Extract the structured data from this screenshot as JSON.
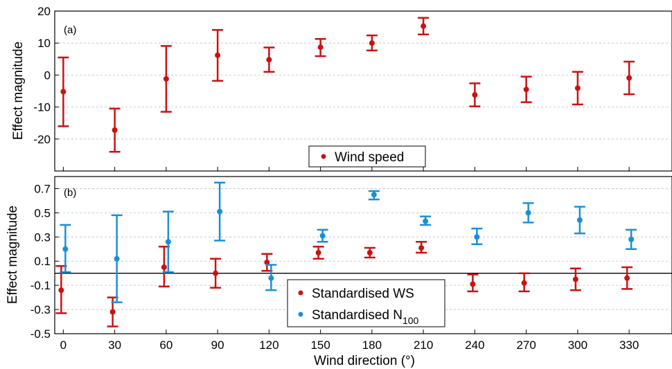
{
  "colors": {
    "wind_speed": "#cc1111",
    "n100": "#1a8fd8",
    "grid": "#bbbbbb"
  },
  "chart_data": [
    {
      "type": "scatter",
      "panel_label": "(a)",
      "xlabel": "",
      "ylabel": "Effect magnitude",
      "xlim": [
        -5,
        355
      ],
      "ylim": [
        -30,
        20
      ],
      "x_ticks": [
        "0",
        "30",
        "60",
        "90",
        "120",
        "150",
        "180",
        "210",
        "240",
        "270",
        "300",
        "330"
      ],
      "y_ticks": [
        -20,
        -10,
        0,
        10,
        20
      ],
      "grid": "horizontal dashed",
      "legend_position": "bottom-center",
      "series": [
        {
          "name": "Wind speed",
          "color": "#cc1111",
          "x": [
            0,
            30,
            60,
            90,
            120,
            150,
            180,
            210,
            240,
            270,
            300,
            330
          ],
          "y": [
            -5.2,
            -17.2,
            -1.2,
            6.2,
            4.8,
            8.7,
            10,
            15.3,
            -6.2,
            -4.5,
            -4.1,
            -0.9
          ],
          "err_low": [
            -16,
            -24,
            -11.5,
            -1.8,
            1,
            5.9,
            7.7,
            12.7,
            -9.8,
            -8.5,
            -9.2,
            -6
          ],
          "err_high": [
            5.5,
            -10.5,
            9.1,
            14.1,
            8.6,
            11.3,
            12.4,
            17.9,
            -2.6,
            -0.5,
            1,
            4.2
          ]
        }
      ]
    },
    {
      "type": "scatter",
      "panel_label": "(b)",
      "xlabel": "Wind direction (°)",
      "ylabel": "Effect magnitude",
      "xlim": [
        -5,
        355
      ],
      "ylim": [
        -0.5,
        0.8
      ],
      "x_ticks": [
        "0",
        "30",
        "60",
        "90",
        "120",
        "150",
        "180",
        "210",
        "240",
        "270",
        "300",
        "330"
      ],
      "y_ticks": [
        "-0.5",
        "-0.3",
        "-0.1",
        "0.1",
        "0.3",
        "0.5",
        "0.7"
      ],
      "grid": "horizontal dashed",
      "zero_line": 0,
      "legend_position": "bottom-center",
      "series": [
        {
          "name": "Standardised WS",
          "color": "#cc1111",
          "x": [
            0,
            30,
            60,
            90,
            120,
            150,
            180,
            210,
            240,
            270,
            300,
            330
          ],
          "y": [
            -0.14,
            -0.32,
            0.05,
            0,
            0.09,
            0.17,
            0.17,
            0.21,
            -0.09,
            -0.08,
            -0.05,
            -0.04
          ],
          "err_low": [
            -0.33,
            -0.44,
            -0.11,
            -0.12,
            0.02,
            0.12,
            0.13,
            0.17,
            -0.15,
            -0.15,
            -0.14,
            -0.13
          ],
          "err_high": [
            0.06,
            -0.2,
            0.22,
            0.12,
            0.16,
            0.22,
            0.21,
            0.26,
            -0.01,
            0,
            0.04,
            0.05
          ]
        },
        {
          "name": "Standardised N",
          "name_sub": "100",
          "color": "#1a8fd8",
          "x": [
            0,
            30,
            60,
            90,
            120,
            150,
            180,
            210,
            240,
            270,
            300,
            330
          ],
          "y": [
            0.2,
            0.12,
            0.26,
            0.51,
            -0.04,
            0.31,
            0.65,
            0.43,
            0.3,
            0.5,
            0.44,
            0.28
          ],
          "err_low": [
            0.01,
            -0.24,
            0.01,
            0.27,
            -0.14,
            0.26,
            0.61,
            0.4,
            0.24,
            0.42,
            0.33,
            0.2
          ],
          "err_high": [
            0.4,
            0.48,
            0.51,
            0.75,
            0.07,
            0.36,
            0.68,
            0.47,
            0.37,
            0.58,
            0.55,
            0.36
          ]
        }
      ]
    }
  ]
}
